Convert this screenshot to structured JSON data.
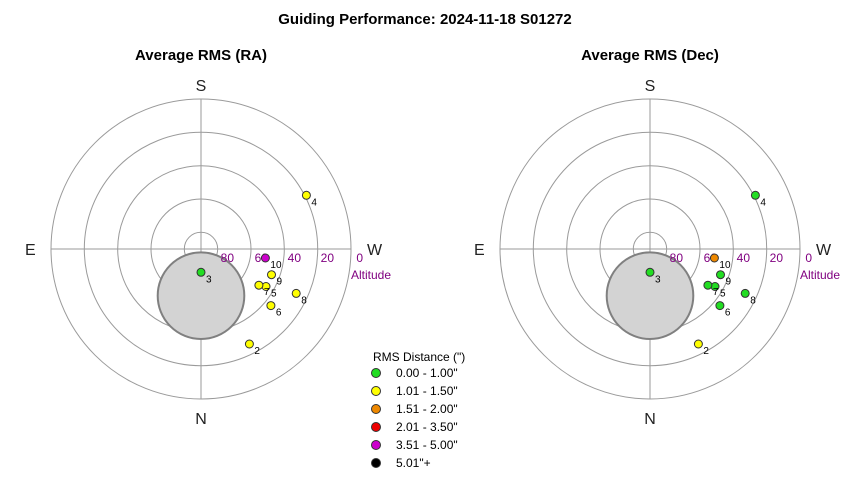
{
  "title": "Guiding Performance: 2024-11-18 S01272",
  "colors": {
    "green": "#22dd22",
    "yellow": "#ffff00",
    "orange": "#ee8800",
    "red": "#ee0000",
    "magenta": "#cc00cc",
    "black": "#000000",
    "altitude_text": "#800080",
    "exclusion_fill": "#d3d3d3",
    "exclusion_stroke": "#808080"
  },
  "chart_data": [
    {
      "type": "scatter",
      "projection": "polar-altaz",
      "title": "Average RMS (RA)",
      "directions": {
        "top": "S",
        "bottom": "N",
        "left": "E",
        "right": "W"
      },
      "altitude_ticks": [
        "80",
        "60",
        "40",
        "20",
        "0"
      ],
      "altitude_label": "Altitude",
      "altitude_range": [
        0,
        90
      ],
      "grid": true,
      "exclusion_zone": {
        "center_azimuth_deg": 0,
        "center_altitude_deg": 62,
        "radius_deg": 26
      },
      "points": [
        {
          "label": "2",
          "azimuth_deg": 207,
          "altitude_deg": 26,
          "rms_bin": "1.01 - 1.50\""
        },
        {
          "label": "3",
          "azimuth_deg": 180,
          "altitude_deg": 76,
          "rms_bin": "0.00 - 1.00\""
        },
        {
          "label": "4",
          "azimuth_deg": 297,
          "altitude_deg": 19,
          "rms_bin": "1.01 - 1.50\""
        },
        {
          "label": "5",
          "azimuth_deg": 240,
          "altitude_deg": 45,
          "rms_bin": "1.01 - 1.50\""
        },
        {
          "label": "6",
          "azimuth_deg": 231,
          "altitude_deg": 36,
          "rms_bin": "1.01 - 1.50\""
        },
        {
          "label": "7",
          "azimuth_deg": 238,
          "altitude_deg": 49,
          "rms_bin": "1.01 - 1.50\""
        },
        {
          "label": "8",
          "azimuth_deg": 245,
          "altitude_deg": 27,
          "rms_bin": "1.01 - 1.50\""
        },
        {
          "label": "9",
          "azimuth_deg": 250,
          "altitude_deg": 45,
          "rms_bin": "1.01 - 1.50\""
        },
        {
          "label": "10",
          "azimuth_deg": 262,
          "altitude_deg": 51,
          "rms_bin": "3.51 - 5.00\""
        }
      ]
    },
    {
      "type": "scatter",
      "projection": "polar-altaz",
      "title": "Average RMS (Dec)",
      "directions": {
        "top": "S",
        "bottom": "N",
        "left": "E",
        "right": "W"
      },
      "altitude_ticks": [
        "80",
        "60",
        "40",
        "20",
        "0"
      ],
      "altitude_label": "Altitude",
      "altitude_range": [
        0,
        90
      ],
      "grid": true,
      "exclusion_zone": {
        "center_azimuth_deg": 0,
        "center_altitude_deg": 62,
        "radius_deg": 26
      },
      "points": [
        {
          "label": "2",
          "azimuth_deg": 207,
          "altitude_deg": 26,
          "rms_bin": "1.01 - 1.50\""
        },
        {
          "label": "3",
          "azimuth_deg": 180,
          "altitude_deg": 76,
          "rms_bin": "0.00 - 1.00\""
        },
        {
          "label": "4",
          "azimuth_deg": 297,
          "altitude_deg": 19,
          "rms_bin": "0.00 - 1.00\""
        },
        {
          "label": "5",
          "azimuth_deg": 240,
          "altitude_deg": 45,
          "rms_bin": "0.00 - 1.00\""
        },
        {
          "label": "6",
          "azimuth_deg": 231,
          "altitude_deg": 36,
          "rms_bin": "0.00 - 1.00\""
        },
        {
          "label": "7",
          "azimuth_deg": 238,
          "altitude_deg": 49,
          "rms_bin": "0.00 - 1.00\""
        },
        {
          "label": "8",
          "azimuth_deg": 245,
          "altitude_deg": 27,
          "rms_bin": "0.00 - 1.00\""
        },
        {
          "label": "9",
          "azimuth_deg": 250,
          "altitude_deg": 45,
          "rms_bin": "0.00 - 1.00\""
        },
        {
          "label": "10",
          "azimuth_deg": 262,
          "altitude_deg": 51,
          "rms_bin": "1.51 - 2.00\""
        }
      ]
    }
  ],
  "legend": {
    "title": "RMS Distance (\")",
    "placement": "bottom-center",
    "items": [
      {
        "label": "0.00 - 1.00\"",
        "color": "#22dd22"
      },
      {
        "label": "1.01 - 1.50\"",
        "color": "#ffff00"
      },
      {
        "label": "1.51 - 2.00\"",
        "color": "#ee8800"
      },
      {
        "label": "2.01 - 3.50\"",
        "color": "#ee0000"
      },
      {
        "label": "3.51 - 5.00\"",
        "color": "#cc00cc"
      },
      {
        "label": "5.01\"+",
        "color": "#000000"
      }
    ]
  }
}
